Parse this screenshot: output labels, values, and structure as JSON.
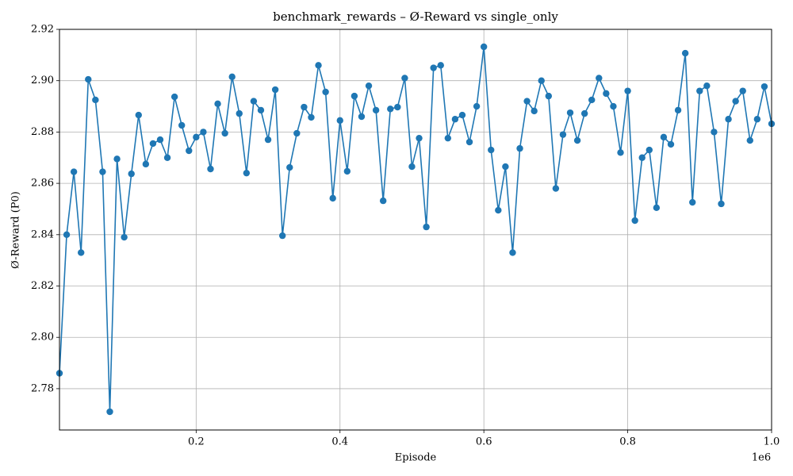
{
  "chart_data": {
    "type": "line",
    "title": "benchmark_rewards – Ø-Reward vs single_only",
    "x_label": "Episode",
    "y_label": "Ø-Reward (P0)",
    "x_offset_label": "1e6",
    "x": [
      10000,
      20000,
      30000,
      40000,
      50000,
      60000,
      70000,
      80000,
      90000,
      100000,
      110000,
      120000,
      130000,
      140000,
      150000,
      160000,
      170000,
      180000,
      190000,
      200000,
      210000,
      220000,
      230000,
      240000,
      250000,
      260000,
      270000,
      280000,
      290000,
      300000,
      310000,
      320000,
      330000,
      340000,
      350000,
      360000,
      370000,
      380000,
      390000,
      400000,
      410000,
      420000,
      430000,
      440000,
      450000,
      460000,
      470000,
      480000,
      490000,
      500000,
      510000,
      520000,
      530000,
      540000,
      550000,
      560000,
      570000,
      580000,
      590000,
      600000,
      610000,
      620000,
      630000,
      640000,
      650000,
      660000,
      670000,
      680000,
      690000,
      700000,
      710000,
      720000,
      730000,
      740000,
      750000,
      760000,
      770000,
      780000,
      790000,
      800000,
      810000,
      820000,
      830000,
      840000,
      850000,
      860000,
      870000,
      880000,
      890000,
      900000,
      910000,
      920000,
      930000,
      940000,
      950000,
      960000,
      970000,
      980000,
      990000,
      1000000
    ],
    "series": [
      {
        "name": "single_only",
        "color": "#1f77b4",
        "values": [
          2.786,
          2.84,
          2.8645,
          2.833,
          2.9005,
          2.8925,
          2.8645,
          2.771,
          2.8695,
          2.839,
          2.8637,
          2.8866,
          2.8675,
          2.8755,
          2.877,
          2.87,
          2.8937,
          2.8826,
          2.8727,
          2.878,
          2.88,
          2.8656,
          2.891,
          2.8795,
          2.9015,
          2.8872,
          2.864,
          2.892,
          2.8885,
          2.877,
          2.8965,
          2.8396,
          2.8662,
          2.8795,
          2.8897,
          2.8857,
          2.906,
          2.8956,
          2.8542,
          2.8845,
          2.8647,
          2.894,
          2.886,
          2.898,
          2.8885,
          2.8532,
          2.889,
          2.8897,
          2.901,
          2.8665,
          2.8776,
          2.843,
          2.905,
          2.906,
          2.8776,
          2.885,
          2.8866,
          2.8761,
          2.89,
          2.9132,
          2.873,
          2.8495,
          2.8665,
          2.833,
          2.8736,
          2.892,
          2.8882,
          2.9,
          2.894,
          2.858,
          2.879,
          2.8875,
          2.8767,
          2.8872,
          2.8925,
          2.901,
          2.895,
          2.89,
          2.872,
          2.896,
          2.8455,
          2.87,
          2.873,
          2.8505,
          2.878,
          2.8752,
          2.8885,
          2.9107,
          2.8526,
          2.896,
          2.898,
          2.88,
          2.852,
          2.885,
          2.892,
          2.896,
          2.8767,
          2.885,
          2.8977,
          2.8832
        ]
      }
    ],
    "xlim": [
      10000,
      1000000
    ],
    "ylim": [
      2.7639,
      2.92
    ],
    "xticks": [
      {
        "value": 200000,
        "label": "0.2"
      },
      {
        "value": 400000,
        "label": "0.4"
      },
      {
        "value": 600000,
        "label": "0.6"
      },
      {
        "value": 800000,
        "label": "0.8"
      },
      {
        "value": 1000000,
        "label": "1.0"
      }
    ],
    "yticks": [
      2.78,
      {
        "value": 2.8,
        "label": "2.80"
      },
      2.82,
      2.84,
      2.86,
      2.88,
      {
        "value": 2.9,
        "label": "2.90"
      },
      2.92
    ],
    "grid": true
  }
}
